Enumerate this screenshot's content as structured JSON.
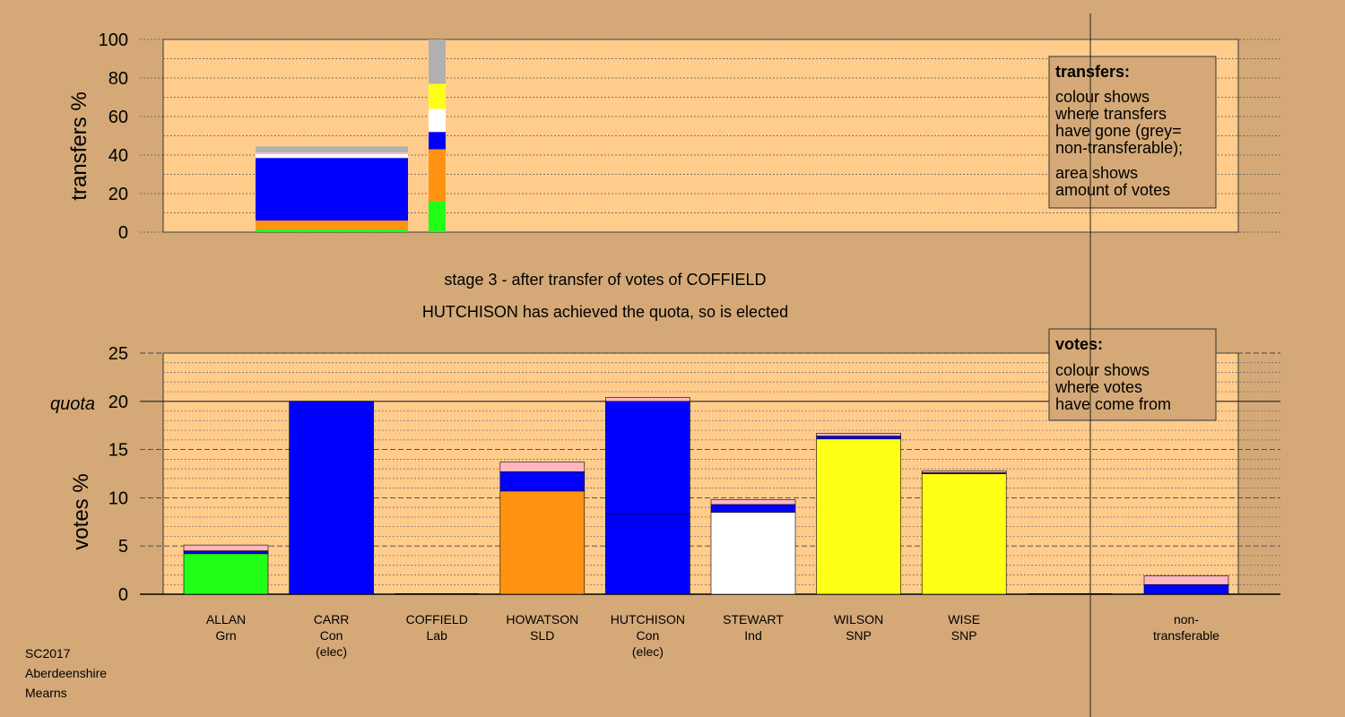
{
  "colors": {
    "background": "#d4a977",
    "plot_fill": "#ffcc8c",
    "green": "#22ff16",
    "blue": "#0000ff",
    "orange": "#ff9211",
    "pink": "#ffb6c1",
    "white": "#ffffff",
    "yellow": "#ffff16",
    "grey": "#b0b0b0"
  },
  "footer": [
    "SC2017",
    "Aberdeenshire",
    "Mearns"
  ],
  "stage_lines": [
    "stage 3 - after transfer of votes of COFFIELD",
    "HUTCHISON has achieved the quota, so is elected"
  ],
  "chart_data": [
    {
      "type": "bar",
      "panel": "transfers",
      "ylabel": "transfers %",
      "ylim": [
        0,
        100
      ],
      "yticks": [
        0,
        20,
        40,
        60,
        80,
        100
      ],
      "transfer_from": "COFFIELD",
      "flow_block": {
        "category": "ALLAN",
        "segments": [
          {
            "color": "green",
            "value": 1.5
          },
          {
            "color": "orange",
            "value": 4.5
          },
          {
            "color": "blue",
            "value": 32.5
          },
          {
            "color": "white",
            "value": 2.0
          },
          {
            "color": "pink",
            "value": 1.0
          },
          {
            "color": "grey",
            "value": 3.0
          }
        ]
      },
      "summary_column": {
        "segments": [
          {
            "color": "green",
            "value": 16
          },
          {
            "color": "orange",
            "value": 27
          },
          {
            "color": "blue",
            "value": 9
          },
          {
            "color": "white",
            "value": 12
          },
          {
            "color": "yellow",
            "value": 13
          },
          {
            "color": "grey",
            "value": 23
          }
        ]
      },
      "legend": {
        "title": "transfers:",
        "lines": [
          "colour shows",
          "where transfers",
          "have gone (grey=",
          "non-transferable);"
        ],
        "lines2": [
          "area shows",
          "amount of votes"
        ]
      }
    },
    {
      "type": "bar",
      "panel": "votes",
      "ylabel": "votes %",
      "ylim": [
        0,
        25
      ],
      "yticks": [
        0,
        5,
        10,
        15,
        20,
        25
      ],
      "quota": 20,
      "quota_label": "quota",
      "candidates": [
        {
          "name": "ALLAN",
          "party": "Grn",
          "elected": "",
          "segments": [
            {
              "color": "green",
              "value": 4.2
            },
            {
              "color": "blue",
              "value": 0.3
            },
            {
              "color": "pink",
              "value": 0.6
            }
          ]
        },
        {
          "name": "CARR",
          "party": "Con",
          "elected": "(elec)",
          "segments": [
            {
              "color": "blue",
              "value": 20.0
            }
          ]
        },
        {
          "name": "COFFIELD",
          "party": "Lab",
          "elected": "",
          "segments": []
        },
        {
          "name": "HOWATSON",
          "party": "SLD",
          "elected": "",
          "segments": [
            {
              "color": "orange",
              "value": 10.7
            },
            {
              "color": "blue",
              "value": 2.0
            },
            {
              "color": "pink",
              "value": 1.0
            }
          ]
        },
        {
          "name": "HUTCHISON",
          "party": "Con",
          "elected": "(elec)",
          "segments": [
            {
              "color": "blue",
              "value": 8.3
            },
            {
              "color": "blue",
              "value": 11.7
            },
            {
              "color": "pink",
              "value": 0.4
            }
          ]
        },
        {
          "name": "STEWART",
          "party": "Ind",
          "elected": "",
          "segments": [
            {
              "color": "white",
              "value": 8.5
            },
            {
              "color": "blue",
              "value": 0.8
            },
            {
              "color": "pink",
              "value": 0.5
            }
          ]
        },
        {
          "name": "WILSON",
          "party": "SNP",
          "elected": "",
          "segments": [
            {
              "color": "yellow",
              "value": 16.1
            },
            {
              "color": "blue",
              "value": 0.3
            },
            {
              "color": "pink",
              "value": 0.3
            }
          ]
        },
        {
          "name": "WISE",
          "party": "SNP",
          "elected": "",
          "segments": [
            {
              "color": "yellow",
              "value": 12.5
            },
            {
              "color": "blue",
              "value": 0.1
            },
            {
              "color": "pink",
              "value": 0.2
            }
          ]
        }
      ],
      "non_transferable": {
        "line1": "non-",
        "line2": "transferable",
        "segments": [
          {
            "color": "blue",
            "value": 1.0
          },
          {
            "color": "pink",
            "value": 0.9
          }
        ]
      },
      "legend": {
        "title": "votes:",
        "lines": [
          "colour shows",
          "where votes",
          "have come from"
        ]
      }
    }
  ]
}
